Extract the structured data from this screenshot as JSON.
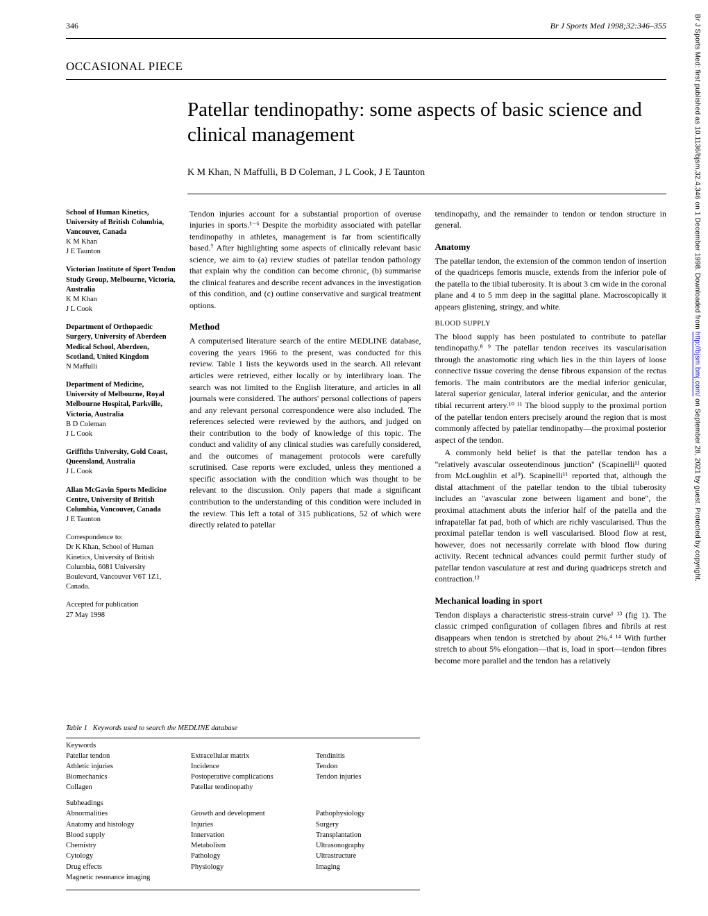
{
  "header": {
    "page_number": "346",
    "journal_reference": "Br J Sports Med 1998;32:346–355"
  },
  "section_label": "OCCASIONAL PIECE",
  "title": "Patellar tendinopathy: some aspects of basic science and clinical management",
  "authors": "K M Khan, N Maffulli, B D Coleman, J L Cook, J E Taunton",
  "affiliations": [
    {
      "inst": "School of Human Kinetics, University of British Columbia, Vancouver, Canada",
      "names": "K M Khan\nJ E Taunton"
    },
    {
      "inst": "Victorian Institute of Sport Tendon Study Group, Melbourne, Victoria, Australia",
      "names": "K M Khan\nJ L Cook"
    },
    {
      "inst": "Department of Orthopaedic Surgery, University of Aberdeen Medical School, Aberdeen, Scotland, United Kingdom",
      "names": "N Maffulli"
    },
    {
      "inst": "Department of Medicine, University of Melbourne, Royal Melbourne Hospital, Parkville, Victoria, Australia",
      "names": "B D Coleman\nJ L Cook"
    },
    {
      "inst": "Griffiths University, Gold Coast, Queensland, Australia",
      "names": "J L Cook"
    },
    {
      "inst": "Allan McGavin Sports Medicine Centre, University of British Columbia, Vancouver, Canada",
      "names": "J E Taunton"
    }
  ],
  "correspondence": "Correspondence to:\nDr K Khan, School of Human Kinetics, University of British Columbia, 6081 University Boulevard, Vancouver V6T 1Z1, Canada.",
  "accepted": "Accepted for publication\n27 May 1998",
  "body": {
    "intro_p1": "Tendon injuries account for a substantial proportion of overuse injuries in sports.¹⁻⁶ Despite the morbidity associated with patellar tendinopathy in athletes, management is far from scientifically based.⁷ After highlighting some aspects of clinically relevant basic science, we aim to (a) review studies of patellar tendon pathology that explain why the condition can become chronic, (b) summarise the clinical features and describe recent advances in the investigation of this condition, and (c) outline conservative and surgical treatment options.",
    "method_heading": "Method",
    "method_p1": "A computerised literature search of the entire MEDLINE database, covering the years 1966 to the present, was conducted for this review. Table 1 lists the keywords used in the search. All relevant articles were retrieved, either locally or by interlibrary loan. The search was not limited to the English literature, and articles in all journals were considered. The authors' personal collections of papers and any relevant personal correspondence were also included. The references selected were reviewed by the authors, and judged on their contribution to the body of knowledge of this topic. The conduct and validity of any clinical studies was carefully considered, and the outcomes of management protocols were carefully scrutinised. Case reports were excluded, unless they mentioned a specific association with the condition which was thought to be relevant to the discussion. Only papers that made a significant contribution to the understanding of this condition were included in the review. This left a total of 315 publications, 52 of which were directly related to patellar",
    "col2_intro": "tendinopathy, and the remainder to tendon or tendon structure in general.",
    "anatomy_heading": "Anatomy",
    "anatomy_p1": "The patellar tendon, the extension of the common tendon of insertion of the quadriceps femoris muscle, extends from the inferior pole of the patella to the tibial tuberosity. It is about 3 cm wide in the coronal plane and 4 to 5 mm deep in the sagittal plane. Macroscopically it appears glistening, stringy, and white.",
    "blood_heading": "BLOOD SUPPLY",
    "blood_p1": "The blood supply has been postulated to contribute to patellar tendinopathy.⁸ ⁹ The patellar tendon receives its vascularisation through the anastomotic ring which lies in the thin layers of loose connective tissue covering the dense fibrous expansion of the rectus femoris. The main contributors are the medial inferior genicular, lateral superior genicular, lateral inferior genicular, and the anterior tibial recurrent artery.¹⁰ ¹¹ The blood supply to the proximal portion of the patellar tendon enters precisely around the region that is most commonly affected by patellar tendinopathy—the proximal posterior aspect of the tendon.",
    "blood_p2": "A commonly held belief is that the patellar tendon has a \"relatively avascular osseotendinous junction\" (Scapinelli¹¹ quoted from McLoughlin et al⁹). Scapinelli¹¹ reported that, although the distal attachment of the patellar tendon to the tibial tuberosity includes an \"avascular zone between ligament and bone\", the proximal attachment abuts the inferior half of the patella and the infrapatellar fat pad, both of which are richly vascularised. Thus the proximal patellar tendon is well vascularised. Blood flow at rest, however, does not necessarily correlate with blood flow during activity. Recent technical advances could permit further study of patellar tendon vasculature at rest and during quadriceps stretch and contraction.¹²",
    "mech_heading": "Mechanical loading in sport",
    "mech_p1": "Tendon displays a characteristic stress-strain curve¹ ¹³ (fig 1). The classic crimped configuration of collagen fibres and fibrils at rest disappears when tendon is stretched by about 2%.⁴ ¹⁴ With further stretch to about 5% elongation—that is, load in sport—tendon fibres become more parallel and the tendon has a relatively"
  },
  "table1": {
    "caption_label": "Table 1",
    "caption_text": "Keywords used to search the MEDLINE database",
    "keywords_title": "Keywords",
    "keywords_c1": [
      "Patellar tendon",
      "Athletic injuries",
      "Biomechanics",
      "Collagen"
    ],
    "keywords_c2": [
      "Extracellular matrix",
      "Incidence",
      "Postoperative complications",
      "Patellar tendinopathy"
    ],
    "keywords_c3": [
      "Tendinitis",
      "Tendon",
      "Tendon injuries"
    ],
    "subheadings_title": "Subheadings",
    "subheadings_c1": [
      "Abnormalities",
      "Anatomy and histology",
      "Blood supply",
      "Chemistry",
      "Cytology",
      "Drug effects",
      "Magnetic resonance imaging"
    ],
    "subheadings_c2": [
      "Growth and development",
      "Injuries",
      "Innervation",
      "Metabolism",
      "Pathology",
      "Physiology"
    ],
    "subheadings_c3": [
      "Pathophysiology",
      "Surgery",
      "Transplantation",
      "Ultrasonography",
      "Ultrastructure",
      "Imaging"
    ]
  },
  "vertical_notice": {
    "prefix": "Br J Sports Med: first published as 10.1136/bjsm.32.4.346 on 1 December 1998. Downloaded from ",
    "link": "http://bjsm.bmj.com/",
    "suffix": " on September 28, 2021 by guest. Protected by copyright."
  }
}
